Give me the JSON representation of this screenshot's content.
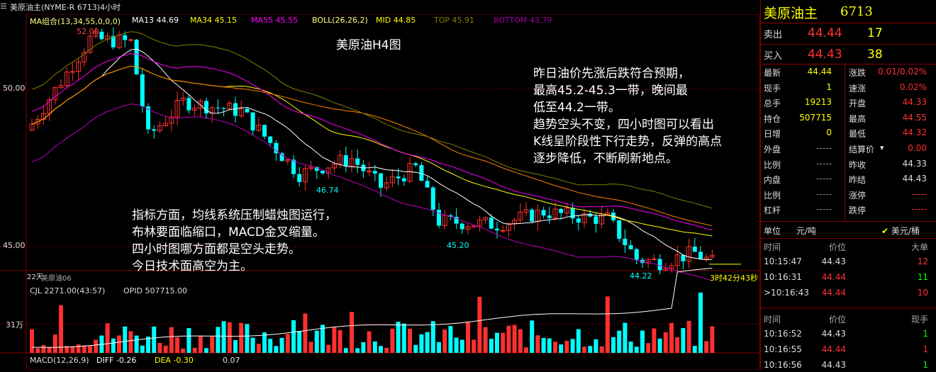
{
  "window": {
    "title": "美原油主(NYME-R 6713)4小时"
  },
  "indicators": {
    "ma": {
      "label": "MA组合(13,34,55,0,0,0)",
      "ma13": "MA13 44.69",
      "ma34": "MA34 45.15",
      "ma55": "MA55 45.55"
    },
    "boll": {
      "label": "BOLL(26,26,2)",
      "mid": "MID  44.85",
      "top": "TOP  45.91",
      "bottom": "BOTTOM  43.79"
    },
    "volume": {
      "label": "CJL  2271.00(43:57)",
      "opid": "OPID  507715.00",
      "axis_label": "31万"
    },
    "macd": {
      "label": "MACD(12,26,9)",
      "diff": "DIFF  -0.26",
      "dea": "DEA  -0.30",
      "macd": "0.07"
    }
  },
  "price_axis": {
    "labels": [
      "50.00",
      "45.00"
    ],
    "high_mark": "52.00",
    "day_label": "22天",
    "contract_label": "美原油06"
  },
  "annotations": {
    "chart_title": "美原油H4图",
    "note_right": "昨日油价先涨后跌符合预期，\n最高45.2-45.3一带，晚间最\n低至44.2一带。\n趋势空头不变，四小时图可以看出\nK线呈阶段性下行走势，反弹的高点\n逐步降低，不断刷新地点。",
    "note_left": "指标方面，均线系统压制蜡烛图运行，\n布林要面临缩口，MACD金叉缩量。\n四小时图哪方面都是空头走势。\n今日技术面高空为主。",
    "low_labels": [
      "46.74",
      "45.20",
      "44.22"
    ],
    "countdown": "3时42分43秒"
  },
  "colors": {
    "up": "#00ffff",
    "down": "#ff3030",
    "ma13": "#ffffff",
    "ma34": "#ffff00",
    "ma55": "#ff00ff",
    "boll_outer": "#808000",
    "accent": "#ff2020",
    "grid": "#800000"
  },
  "quote": {
    "name": "美原油主",
    "code": "6713",
    "sell": {
      "label": "卖出",
      "price": "44.44",
      "vol": "17"
    },
    "buy": {
      "label": "买入",
      "price": "44.43",
      "vol": "38"
    },
    "stats": [
      {
        "l1": "最新",
        "v1": "44.44",
        "l2": "涨跌",
        "v2": "0.01/0.02%"
      },
      {
        "l1": "现手",
        "v1": "1",
        "l2": "速涨",
        "v2": "0.02%"
      },
      {
        "l1": "总手",
        "v1": "19213",
        "l2": "开盘",
        "v2": "44.33"
      },
      {
        "l1": "持仓",
        "v1": "507715",
        "l2": "最高",
        "v2": "44.55"
      },
      {
        "l1": "日增",
        "v1": "0",
        "l2": "最低",
        "v2": "44.32"
      },
      {
        "l1": "外盘",
        "v1": "-----",
        "l2": "结算价",
        "v2": "0.00"
      },
      {
        "l1": "比例",
        "v1": "-----",
        "l2": "昨收",
        "v2": "44.33"
      },
      {
        "l1": "内盘",
        "v1": "-----",
        "l2": "昨结",
        "v2": "44.43"
      },
      {
        "l1": "比例",
        "v1": "-----",
        "l2": "涨停",
        "v2": "-----"
      },
      {
        "l1": "杠杆",
        "v1": "-----",
        "l2": "跌停",
        "v2": "-----"
      }
    ],
    "unit": {
      "label": "单位",
      "value": "元/吨",
      "alt": "美元/桶"
    },
    "ticks1": {
      "headers": [
        "时间",
        "价位",
        "大单"
      ],
      "rows": [
        {
          "t": "10:15:47",
          "p": "44.43",
          "v": "12"
        },
        {
          "t": "10:16:31",
          "p": "44.44",
          "v": "11"
        },
        {
          "t": ">10:16:43",
          "p": "44.44",
          "v": "10"
        }
      ]
    },
    "ticks2": {
      "headers": [
        "时间",
        "价位",
        "现手"
      ],
      "rows": [
        {
          "t": "10:16:52",
          "p": "44.43",
          "v": "1"
        },
        {
          "t": "10:16:55",
          "p": "44.44",
          "v": "1"
        },
        {
          "t": "10:16:56",
          "p": "44.43",
          "v": "1"
        }
      ]
    }
  }
}
